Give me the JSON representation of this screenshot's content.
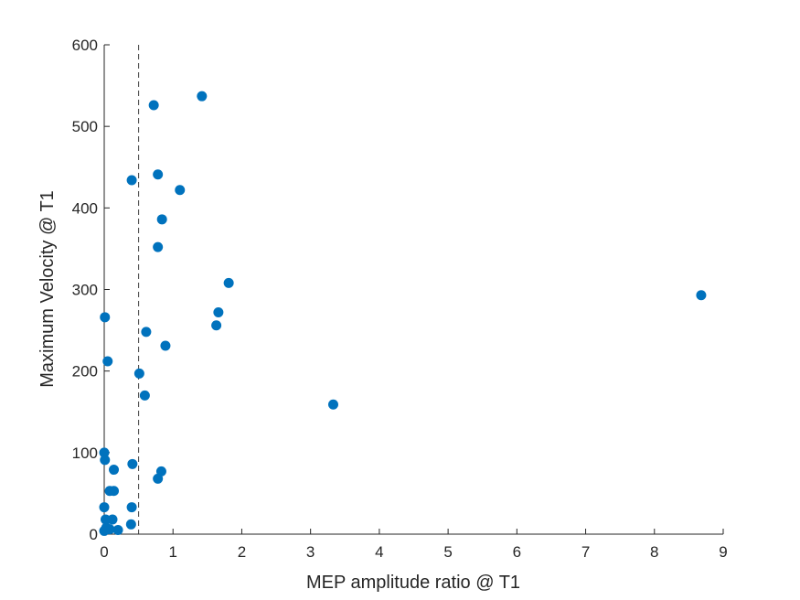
{
  "chart_data": {
    "type": "scatter",
    "xlabel": "MEP amplitude ratio @ T1",
    "ylabel": "Maximum Velocity @ T1",
    "xlim": [
      0,
      9
    ],
    "ylim": [
      0,
      600
    ],
    "xticks": [
      0,
      1,
      2,
      3,
      4,
      5,
      6,
      7,
      8,
      9
    ],
    "yticks": [
      0,
      100,
      200,
      300,
      400,
      500,
      600
    ],
    "xtick_labels": [
      "0",
      "1",
      "2",
      "3",
      "4",
      "5",
      "6",
      "7",
      "8",
      "9"
    ],
    "ytick_labels": [
      "0",
      "100",
      "200",
      "300",
      "400",
      "500",
      "600"
    ],
    "grid": false,
    "marker_color": "#0072BD",
    "reference_line": {
      "orientation": "vertical",
      "x": 0.5,
      "style": "dashed",
      "color": "#404040"
    },
    "series": [
      {
        "points": [
          [
            0.72,
            526
          ],
          [
            1.42,
            537
          ],
          [
            0.78,
            441
          ],
          [
            1.1,
            422
          ],
          [
            0.4,
            434
          ],
          [
            0.84,
            386
          ],
          [
            0.78,
            352
          ],
          [
            1.81,
            308
          ],
          [
            1.66,
            272
          ],
          [
            1.63,
            256
          ],
          [
            8.68,
            293
          ],
          [
            0.01,
            266
          ],
          [
            0.61,
            248
          ],
          [
            0.89,
            231
          ],
          [
            0.05,
            212
          ],
          [
            0.51,
            197
          ],
          [
            0.59,
            170
          ],
          [
            3.33,
            159
          ],
          [
            0.0,
            100
          ],
          [
            0.01,
            91
          ],
          [
            0.41,
            86
          ],
          [
            0.14,
            79
          ],
          [
            0.83,
            77
          ],
          [
            0.78,
            68
          ],
          [
            0.08,
            53
          ],
          [
            0.14,
            53
          ],
          [
            0.0,
            33
          ],
          [
            0.4,
            33
          ],
          [
            0.02,
            18
          ],
          [
            0.12,
            18
          ],
          [
            0.39,
            12
          ],
          [
            0.03,
            8
          ],
          [
            0.08,
            6
          ],
          [
            0.2,
            5
          ],
          [
            0.0,
            4
          ]
        ]
      }
    ]
  }
}
